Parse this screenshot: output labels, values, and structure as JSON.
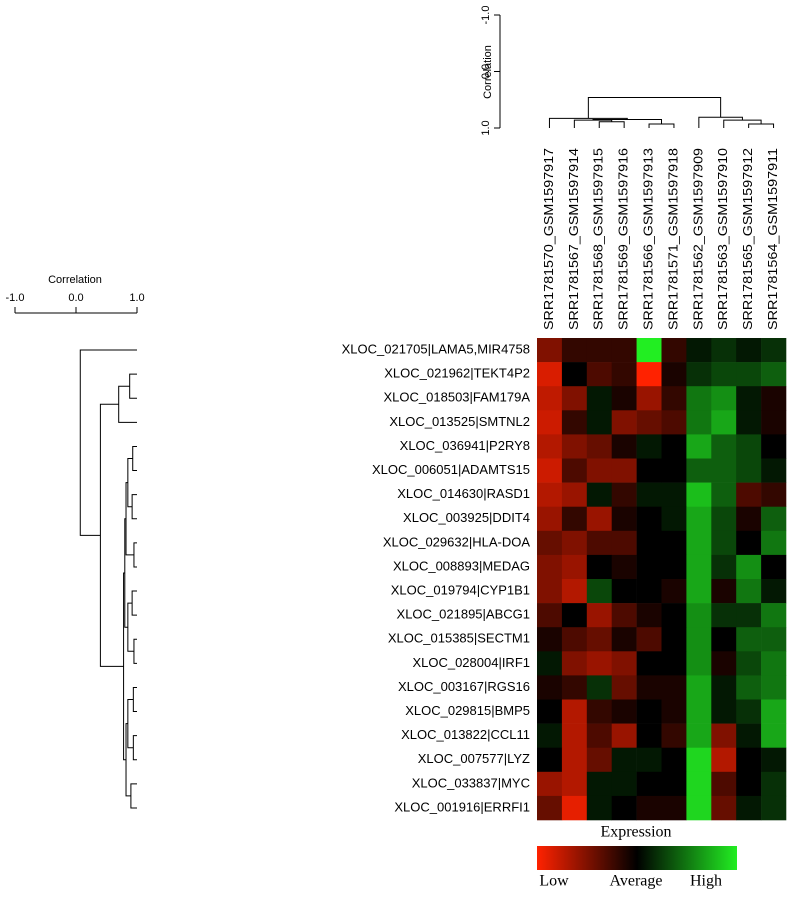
{
  "chart_data": {
    "type": "heatmap",
    "columns": [
      "SRR1781570_GSM1597917",
      "SRR1781567_GSM1597914",
      "SRR1781568_GSM1597915",
      "SRR1781569_GSM1597916",
      "SRR1781566_GSM1597913",
      "SRR1781571_GSM1597918",
      "SRR1781562_GSM1597909",
      "SRR1781563_GSM1597910",
      "SRR1781565_GSM1597912",
      "SRR1781564_GSM1597911"
    ],
    "categories": [
      "XLOC_021705|LAMA5,MIR4758",
      "XLOC_021962|TEKT4P2",
      "XLOC_018503|FAM179A",
      "XLOC_013525|SMTNL2",
      "XLOC_036941|P2RY8",
      "XLOC_006051|ADAMTS15",
      "XLOC_014630|RASD1",
      "XLOC_003925|DDIT4",
      "XLOC_029632|HLA-DOA",
      "XLOC_008893|MEDAG",
      "XLOC_019794|CYP1B1",
      "XLOC_021895|ABCG1",
      "XLOC_015385|SECTM1",
      "XLOC_028004|IRF1",
      "XLOC_003167|RGS16",
      "XLOC_029815|BMP5",
      "XLOC_013822|CCL11",
      "XLOC_007577|LYZ",
      "XLOC_033837|MYC",
      "XLOC_001916|ERRFI1"
    ],
    "values": [
      [
        -0.5,
        -0.2,
        -0.2,
        -0.2,
        1.0,
        -0.2,
        0.1,
        0.2,
        0.1,
        0.2
      ],
      [
        -0.85,
        0,
        -0.3,
        -0.2,
        -1,
        -0.1,
        0.2,
        0.3,
        0.3,
        0.4
      ],
      [
        -0.75,
        -0.5,
        0.1,
        -0.1,
        -0.6,
        -0.2,
        0.5,
        0.6,
        0.1,
        -0.1
      ],
      [
        -0.8,
        -0.2,
        0.1,
        -0.5,
        -0.4,
        -0.3,
        0.5,
        0.7,
        0.1,
        -0.1
      ],
      [
        -0.7,
        -0.5,
        -0.4,
        -0.1,
        0.1,
        0,
        0.7,
        0.4,
        0.3,
        0
      ],
      [
        -0.8,
        -0.3,
        -0.5,
        -0.5,
        0,
        0,
        0.4,
        0.4,
        0.3,
        0.1
      ],
      [
        -0.7,
        -0.6,
        0.1,
        -0.2,
        0.1,
        0.1,
        0.8,
        0.4,
        -0.3,
        -0.2
      ],
      [
        -0.6,
        -0.2,
        -0.6,
        -0.1,
        0,
        0.1,
        0.7,
        0.3,
        -0.1,
        0.4
      ],
      [
        -0.4,
        -0.5,
        -0.3,
        -0.3,
        0,
        0,
        0.7,
        0.3,
        0,
        0.5
      ],
      [
        -0.5,
        -0.6,
        0,
        -0.1,
        0,
        0,
        0.7,
        0.2,
        0.6,
        0
      ],
      [
        -0.5,
        -0.7,
        0.3,
        0,
        0,
        -0.1,
        0.7,
        -0.1,
        0.5,
        0.1
      ],
      [
        -0.3,
        0,
        -0.6,
        -0.3,
        -0.1,
        0,
        0.6,
        0.2,
        0.2,
        0.5
      ],
      [
        -0.1,
        -0.3,
        -0.4,
        -0.1,
        -0.3,
        0,
        0.6,
        0,
        0.4,
        0.4
      ],
      [
        0.1,
        -0.5,
        -0.6,
        -0.5,
        0,
        0,
        0.6,
        -0.1,
        0.3,
        0.5
      ],
      [
        -0.1,
        -0.2,
        0.2,
        -0.4,
        -0.1,
        -0.1,
        0.7,
        0.1,
        0.4,
        0.5
      ],
      [
        0,
        -0.7,
        -0.2,
        -0.1,
        0,
        -0.1,
        0.7,
        0.1,
        0.2,
        0.7
      ],
      [
        0.1,
        -0.7,
        -0.3,
        -0.6,
        0,
        -0.2,
        0.7,
        -0.5,
        0.1,
        0.7
      ],
      [
        0,
        -0.7,
        -0.4,
        0.1,
        0.1,
        0,
        0.9,
        -0.7,
        0,
        0.1
      ],
      [
        -0.6,
        -0.7,
        0.1,
        0.1,
        0,
        0,
        0.9,
        -0.3,
        0,
        0.2
      ],
      [
        -0.4,
        -0.9,
        0.1,
        0,
        -0.1,
        -0.1,
        0.9,
        -0.4,
        0.1,
        0.2
      ]
    ],
    "zlim": [
      -1,
      1
    ],
    "colors": {
      "low": "#ff2200",
      "mid": "#000000",
      "high": "#22ee22"
    },
    "colorbar": {
      "title": "Expression",
      "labels": [
        "Low",
        "Average",
        "High"
      ]
    },
    "column_dendrogram": {
      "axis_label": "Correlation",
      "ylim": [
        -1,
        1
      ],
      "yticks": [
        {
          "value": -1,
          "label": "-1.0"
        },
        {
          "value": 0,
          "label": "0.0"
        },
        {
          "value": 1,
          "label": "1.0"
        }
      ],
      "merges": [
        {
          "left": -3,
          "right": -4,
          "height": 0.89
        },
        {
          "left": -5,
          "right": -6,
          "height": 0.93
        },
        {
          "left": -2,
          "right": 1,
          "height": 0.86
        },
        {
          "left": 3,
          "right": 2,
          "height": 0.85
        },
        {
          "left": -1,
          "right": 4,
          "height": 0.83
        },
        {
          "left": -9,
          "right": -10,
          "height": 0.93
        },
        {
          "left": -8,
          "right": 6,
          "height": 0.86
        },
        {
          "left": -7,
          "right": 7,
          "height": 0.81
        },
        {
          "left": 5,
          "right": 8,
          "height": 0.46
        }
      ]
    },
    "row_dendrogram": {
      "axis_label": "Correlation",
      "xlim": [
        -1,
        1
      ],
      "xticks": [
        {
          "value": -1,
          "label": "-1.0"
        },
        {
          "value": 0,
          "label": "0.0"
        },
        {
          "value": 1,
          "label": "1.0"
        }
      ],
      "merges": [
        {
          "left": -2,
          "right": -3,
          "height": 0.88
        },
        {
          "left": 1,
          "right": -4,
          "height": 0.7
        },
        {
          "left": -5,
          "right": -6,
          "height": 0.93
        },
        {
          "left": -7,
          "right": -8,
          "height": 0.92
        },
        {
          "left": 3,
          "right": 4,
          "height": 0.85
        },
        {
          "left": -9,
          "right": -10,
          "height": 0.95
        },
        {
          "left": 5,
          "right": 6,
          "height": 0.82
        },
        {
          "left": -11,
          "right": -12,
          "height": 0.92
        },
        {
          "left": -13,
          "right": -14,
          "height": 0.95
        },
        {
          "left": 8,
          "right": 9,
          "height": 0.85
        },
        {
          "left": 7,
          "right": 10,
          "height": 0.8
        },
        {
          "left": -15,
          "right": -16,
          "height": 0.94
        },
        {
          "left": -17,
          "right": -18,
          "height": 0.94
        },
        {
          "left": 12,
          "right": 13,
          "height": 0.85
        },
        {
          "left": -19,
          "right": -20,
          "height": 0.9
        },
        {
          "left": 14,
          "right": 15,
          "height": 0.82
        },
        {
          "left": 11,
          "right": 16,
          "height": 0.78
        },
        {
          "left": 2,
          "right": 17,
          "height": 0.4
        },
        {
          "left": -1,
          "right": 18,
          "height": 0.07
        }
      ]
    }
  }
}
